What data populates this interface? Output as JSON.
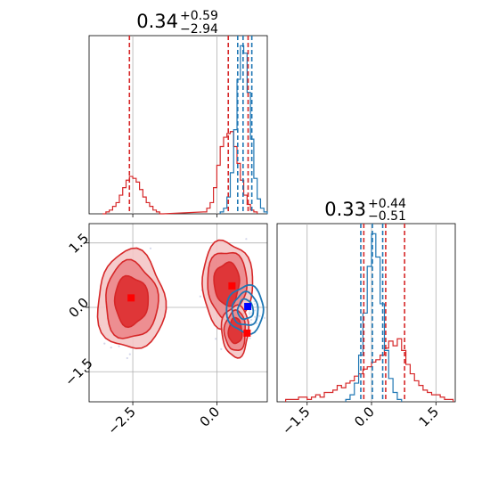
{
  "chart_data": [
    {
      "panel": "marginal-x",
      "type": "histogram",
      "title": {
        "value": "0.34",
        "upper": "+0.59",
        "lower": "−2.94"
      },
      "xlim": [
        -3.8,
        1.5
      ],
      "xticks": [
        -2.5,
        0.0
      ],
      "grid": true,
      "series": [
        {
          "color": "#d62728",
          "bins": [
            [
              -3.4,
              -3.3,
              0
            ],
            [
              -3.3,
              -3.2,
              1
            ],
            [
              -3.2,
              -3.1,
              2
            ],
            [
              -3.1,
              -3.0,
              4
            ],
            [
              -3.0,
              -2.9,
              6
            ],
            [
              -2.9,
              -2.8,
              10
            ],
            [
              -2.8,
              -2.7,
              14
            ],
            [
              -2.7,
              -2.6,
              18
            ],
            [
              -2.6,
              -2.5,
              20
            ],
            [
              -2.5,
              -2.4,
              19
            ],
            [
              -2.4,
              -2.3,
              17
            ],
            [
              -2.3,
              -2.2,
              13
            ],
            [
              -2.2,
              -2.1,
              9
            ],
            [
              -2.1,
              -2.0,
              6
            ],
            [
              -2.0,
              -1.9,
              4
            ],
            [
              -1.9,
              -1.8,
              2
            ],
            [
              -1.8,
              -1.7,
              1
            ],
            [
              -1.7,
              -1.6,
              0
            ],
            [
              -0.4,
              -0.3,
              1
            ],
            [
              -0.3,
              -0.2,
              3
            ],
            [
              -0.2,
              -0.1,
              6
            ],
            [
              -0.1,
              0.0,
              14
            ],
            [
              0.0,
              0.1,
              26
            ],
            [
              0.1,
              0.2,
              36
            ],
            [
              0.2,
              0.3,
              41
            ],
            [
              0.3,
              0.4,
              43
            ],
            [
              0.4,
              0.5,
              44
            ],
            [
              0.5,
              0.6,
              36
            ],
            [
              0.6,
              0.7,
              27
            ],
            [
              0.7,
              0.8,
              18
            ],
            [
              0.8,
              0.9,
              10
            ],
            [
              0.9,
              1.0,
              5
            ],
            [
              1.0,
              1.1,
              2
            ],
            [
              1.1,
              1.2,
              1
            ]
          ],
          "quantiles": [
            -2.6,
            0.34,
            0.93
          ]
        },
        {
          "color": "#1f77b4",
          "bins": [
            [
              0.1,
              0.2,
              1
            ],
            [
              0.2,
              0.3,
              3
            ],
            [
              0.3,
              0.4,
              9
            ],
            [
              0.4,
              0.5,
              22
            ],
            [
              0.5,
              0.6,
              45
            ],
            [
              0.6,
              0.7,
              72
            ],
            [
              0.7,
              0.8,
              90
            ],
            [
              0.8,
              0.9,
              86
            ],
            [
              0.9,
              1.0,
              65
            ],
            [
              1.0,
              1.1,
              40
            ],
            [
              1.1,
              1.2,
              19
            ],
            [
              1.2,
              1.3,
              8
            ],
            [
              1.3,
              1.4,
              3
            ],
            [
              1.4,
              1.5,
              1
            ]
          ],
          "quantiles": [
            0.62,
            0.78,
            1.04
          ]
        }
      ]
    },
    {
      "panel": "marginal-y",
      "type": "histogram",
      "title": {
        "value": "0.33",
        "upper": "+0.44",
        "lower": "−0.51"
      },
      "xlim": [
        -2.2,
        1.95
      ],
      "xticks": [
        -1.5,
        0.0,
        1.5
      ],
      "grid": true,
      "series": [
        {
          "color": "#d62728",
          "bins": [
            [
              -2.0,
              -1.9,
              1
            ],
            [
              -1.9,
              -1.8,
              1
            ],
            [
              -1.8,
              -1.7,
              1
            ],
            [
              -1.7,
              -1.6,
              2
            ],
            [
              -1.6,
              -1.5,
              2
            ],
            [
              -1.5,
              -1.4,
              1
            ],
            [
              -1.4,
              -1.3,
              2
            ],
            [
              -1.3,
              -1.2,
              3
            ],
            [
              -1.2,
              -1.1,
              2
            ],
            [
              -1.1,
              -1.0,
              4
            ],
            [
              -1.0,
              -0.9,
              4
            ],
            [
              -0.9,
              -0.8,
              5
            ],
            [
              -0.8,
              -0.7,
              7
            ],
            [
              -0.7,
              -0.6,
              6
            ],
            [
              -0.6,
              -0.5,
              8
            ],
            [
              -0.5,
              -0.4,
              9
            ],
            [
              -0.4,
              -0.3,
              11
            ],
            [
              -0.3,
              -0.2,
              12
            ],
            [
              -0.2,
              -0.1,
              14
            ],
            [
              -0.1,
              0.0,
              15
            ],
            [
              0.0,
              0.1,
              17
            ],
            [
              0.1,
              0.2,
              18
            ],
            [
              0.2,
              0.3,
              20
            ],
            [
              0.3,
              0.4,
              23
            ],
            [
              0.4,
              0.5,
              26
            ],
            [
              0.5,
              0.6,
              24
            ],
            [
              0.6,
              0.7,
              27
            ],
            [
              0.7,
              0.8,
              22
            ],
            [
              0.8,
              0.9,
              16
            ],
            [
              0.9,
              1.0,
              12
            ],
            [
              1.0,
              1.1,
              9
            ],
            [
              1.1,
              1.2,
              7
            ],
            [
              1.2,
              1.3,
              5
            ],
            [
              1.3,
              1.4,
              4
            ],
            [
              1.4,
              1.5,
              3
            ],
            [
              1.5,
              1.6,
              3
            ],
            [
              1.6,
              1.7,
              2
            ],
            [
              1.7,
              1.8,
              1
            ],
            [
              1.8,
              1.9,
              1
            ]
          ],
          "quantiles": [
            -0.18,
            0.33,
            0.77
          ]
        },
        {
          "color": "#1f77b4",
          "bins": [
            [
              -0.6,
              -0.5,
              1
            ],
            [
              -0.5,
              -0.4,
              3
            ],
            [
              -0.4,
              -0.3,
              8
            ],
            [
              -0.3,
              -0.2,
              20
            ],
            [
              -0.2,
              -0.1,
              38
            ],
            [
              -0.1,
              0.0,
              58
            ],
            [
              0.0,
              0.1,
              72
            ],
            [
              0.1,
              0.2,
              62
            ],
            [
              0.2,
              0.3,
              42
            ],
            [
              0.3,
              0.4,
              22
            ],
            [
              0.4,
              0.5,
              10
            ],
            [
              0.5,
              0.6,
              4
            ],
            [
              0.6,
              0.7,
              1
            ]
          ],
          "quantiles": [
            -0.25,
            0.02,
            0.26
          ]
        }
      ]
    },
    {
      "panel": "joint",
      "type": "contour",
      "xlim": [
        -3.8,
        1.5
      ],
      "ylim": [
        -2.2,
        1.95
      ],
      "xticks": [
        -2.5,
        0.0
      ],
      "yticks": [
        -1.5,
        0.0,
        1.5
      ],
      "grid": true,
      "series": [
        {
          "color": "#d62728",
          "blobs": [
            {
              "cx": -2.55,
              "cy": 0.15,
              "rx": 1.0,
              "ry": 1.15
            },
            {
              "cx": 0.3,
              "cy": 0.55,
              "rx": 0.75,
              "ry": 1.0
            },
            {
              "cx": 0.55,
              "cy": -0.55,
              "rx": 0.4,
              "ry": 0.6
            }
          ],
          "markers": [
            [
              -2.55,
              0.22
            ],
            [
              0.45,
              0.5
            ],
            [
              0.9,
              -0.6
            ]
          ]
        },
        {
          "color": "#1f77b4",
          "blobs": [
            {
              "cx": 0.85,
              "cy": -0.05,
              "rx": 0.55,
              "ry": 0.55
            }
          ],
          "markers": [
            [
              0.92,
              0.02
            ]
          ]
        }
      ]
    }
  ]
}
